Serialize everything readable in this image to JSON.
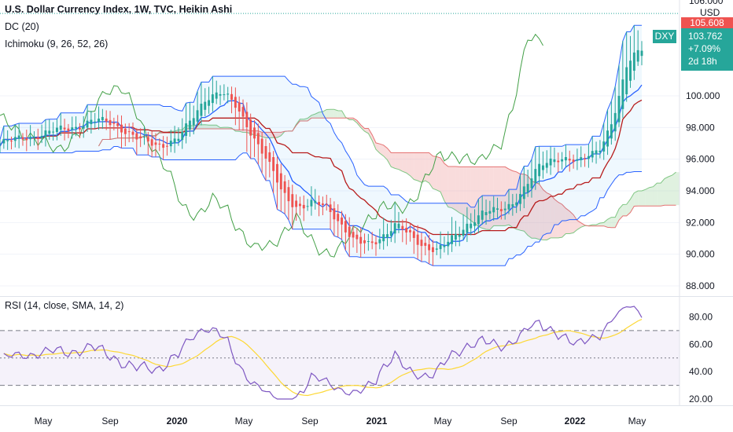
{
  "legend": {
    "title": "U.S. Dollar Currency Index, 1W, TVC, Heikin Ashi",
    "dc": "DC (20)",
    "ichimoku": "Ichimoku (9, 26, 52, 26)",
    "rsi": "RSI (14, close, SMA, 14, 2)"
  },
  "price_axis": {
    "currency": "USD",
    "top_tick": "106.000",
    "high_tag": "105.608",
    "ticks": [
      "100.000",
      "98.000",
      "96.000",
      "94.000",
      "92.000",
      "90.000",
      "88.000"
    ]
  },
  "price_badge": {
    "symbol": "DXY",
    "price": "103.762",
    "change": "+7.09%",
    "countdown": "2d 18h",
    "color": "#26a69a"
  },
  "rsi_axis": {
    "ticks": [
      "80.00",
      "60.00",
      "40.00",
      "20.00"
    ]
  },
  "x_axis": {
    "labels": [
      {
        "text": "May",
        "bold": false
      },
      {
        "text": "Sep",
        "bold": false
      },
      {
        "text": "2020",
        "bold": true
      },
      {
        "text": "May",
        "bold": false
      },
      {
        "text": "Sep",
        "bold": false
      },
      {
        "text": "2021",
        "bold": true
      },
      {
        "text": "May",
        "bold": false
      },
      {
        "text": "Sep",
        "bold": false
      },
      {
        "text": "2022",
        "bold": true
      },
      {
        "text": "May",
        "bold": false
      }
    ]
  },
  "colors": {
    "up": "#26a69a",
    "down": "#ef5350",
    "donchian": "#2962ff",
    "conversion": "#2962ff",
    "base": "#b71c1c",
    "lagging": "#43a047",
    "rsi_line": "#7e57c2",
    "rsi_ma": "#fdd835",
    "cloud_bull": "#a5d6a7",
    "cloud_bear": "#ef9a9a"
  },
  "chart_data": {
    "type": "candlestick",
    "x": [
      "2019-05",
      "2019-09",
      "2020-01",
      "2020-05",
      "2020-09",
      "2021-01",
      "2021-05",
      "2021-09",
      "2022-01",
      "2022-05"
    ],
    "price": [
      97.6,
      98.4,
      97.2,
      99.6,
      93.4,
      90.1,
      90.3,
      93.1,
      96.3,
      103.76
    ],
    "ylim": [
      88,
      106
    ],
    "rsi": {
      "x": [
        "2019-05",
        "2019-09",
        "2020-01",
        "2020-05",
        "2020-09",
        "2021-01",
        "2021-05",
        "2021-09",
        "2022-01",
        "2022-05"
      ],
      "rsi": [
        61,
        63,
        52,
        58,
        35,
        24,
        37,
        57,
        66,
        88
      ],
      "rsi_ma": [
        58,
        57,
        54,
        53,
        41,
        30,
        35,
        50,
        68,
        77
      ],
      "bands": [
        30,
        50,
        70
      ],
      "ylim": [
        20,
        90
      ]
    }
  }
}
